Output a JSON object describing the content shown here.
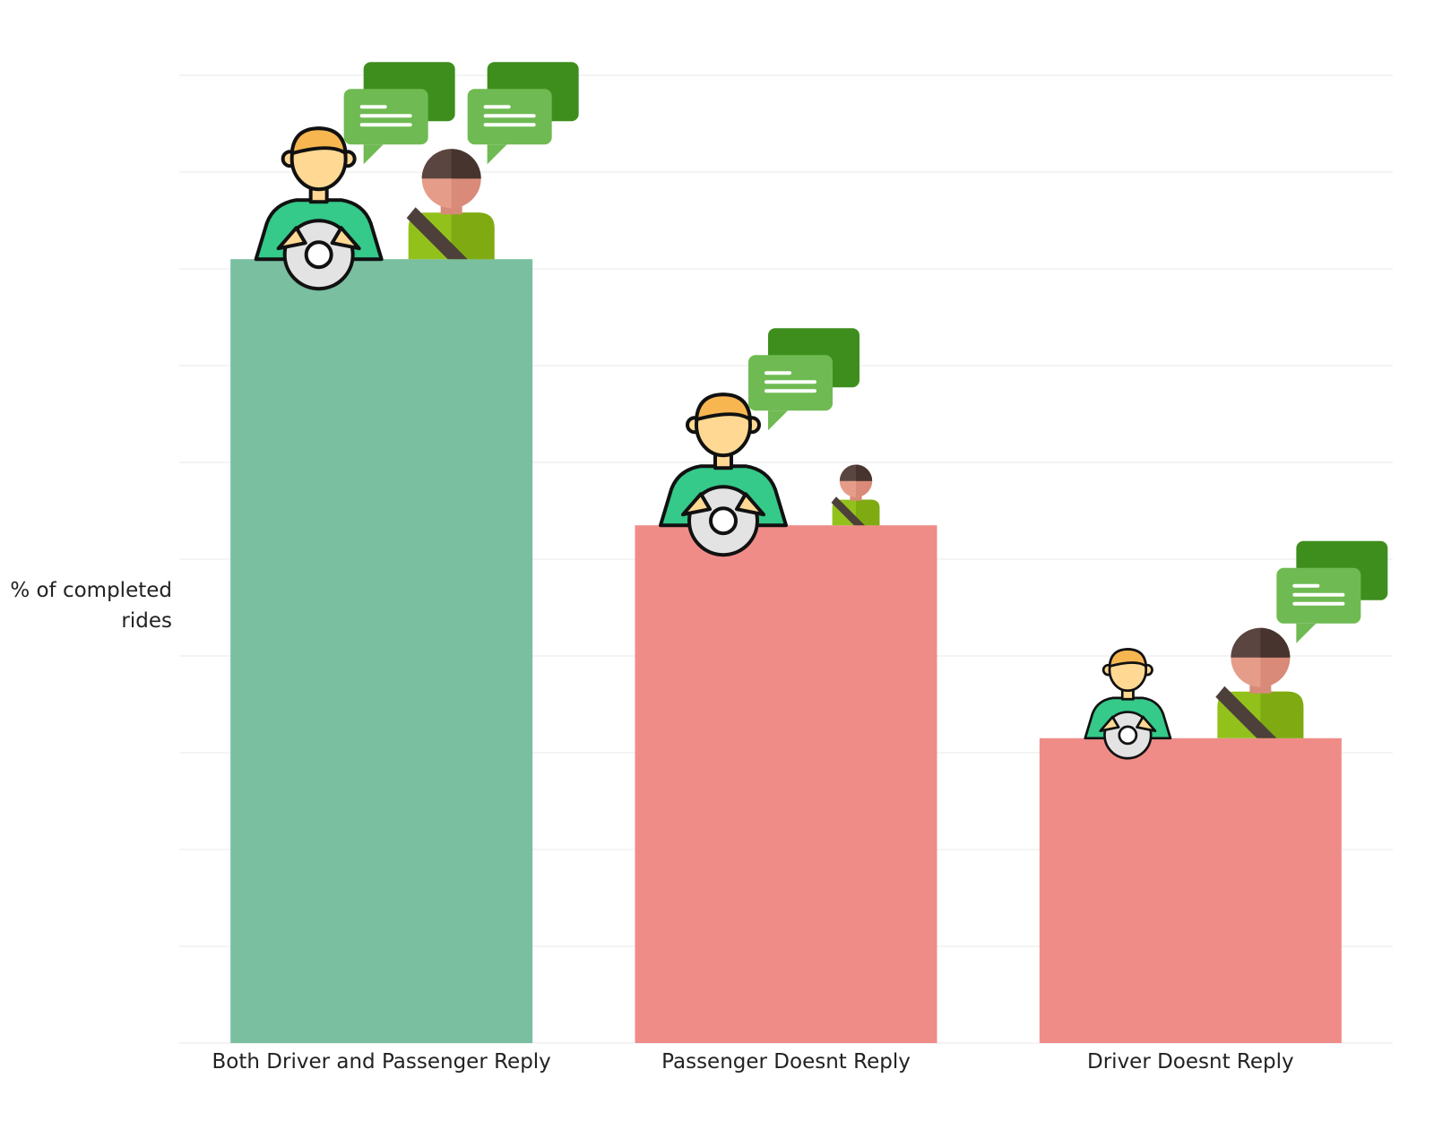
{
  "chart_data": {
    "type": "bar",
    "title": "",
    "xlabel": "",
    "ylabel_lines": [
      "% of completed",
      "rides"
    ],
    "categories": [
      "Both Driver and Passenger Reply",
      "Passenger Doesnt Reply",
      "Driver Doesnt Reply"
    ],
    "values": [
      81,
      53.5,
      31.5
    ],
    "ylim": [
      0,
      100
    ],
    "grid": true,
    "y_tick_labels_shown": false,
    "bar_colors": [
      "#79bfa0",
      "#f08c88",
      "#f08c88"
    ],
    "icons": [
      {
        "category": "Both Driver and Passenger Reply",
        "driver_icon": "driver-at-wheel-icon",
        "passenger_icon": "seatbelt-passenger-icon",
        "driver_size": "large",
        "passenger_size": "large",
        "speech_bubbles": [
          "driver",
          "passenger"
        ]
      },
      {
        "category": "Passenger Doesnt Reply",
        "driver_icon": "driver-at-wheel-icon",
        "passenger_icon": "seatbelt-passenger-icon",
        "driver_size": "large",
        "passenger_size": "small",
        "speech_bubbles": [
          "driver"
        ]
      },
      {
        "category": "Driver Doesnt Reply",
        "driver_icon": "driver-at-wheel-icon",
        "passenger_icon": "seatbelt-passenger-icon",
        "driver_size": "small",
        "passenger_size": "large",
        "speech_bubbles": [
          "passenger"
        ]
      }
    ]
  },
  "colors": {
    "grid": "#eeeeee",
    "text": "#222222",
    "bubble_back": "#3e8e1e",
    "bubble_front": "#6fba52",
    "driver_skin": "#ffd993",
    "driver_shirt": "#35c98a",
    "passenger_skin": "#e59d8a",
    "passenger_hair": "#5a4540",
    "passenger_shirt": "#93c11b"
  }
}
